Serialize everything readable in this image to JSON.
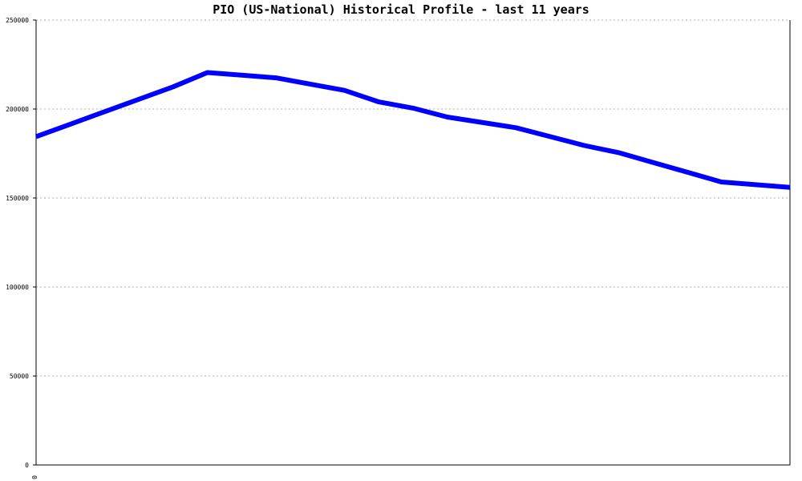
{
  "chart_data": {
    "type": "line",
    "title": "PIO (US-National) Historical Profile - last 11 years",
    "xlabel": "",
    "ylabel": "",
    "ylim": [
      0,
      250000
    ],
    "yticks": [
      "0",
      "50000",
      "100000",
      "150000",
      "200000",
      "250000"
    ],
    "xticks": [
      "0"
    ],
    "grid": "horizontal dotted",
    "legend": "none",
    "series": [
      {
        "color": "#0000ff",
        "x": [
          0,
          0.5,
          1,
          1.5,
          2,
          2.5,
          3,
          3.5,
          4,
          4.5,
          5,
          5.5,
          6,
          6.5,
          7,
          7.5,
          8,
          8.5,
          9,
          9.5,
          10,
          11
        ],
        "values": [
          184500,
          191500,
          198500,
          205500,
          212500,
          220500,
          219000,
          217500,
          214000,
          210500,
          204000,
          200500,
          195500,
          192500,
          189500,
          184500,
          179500,
          175500,
          170000,
          164500,
          159000,
          156000
        ]
      }
    ]
  }
}
